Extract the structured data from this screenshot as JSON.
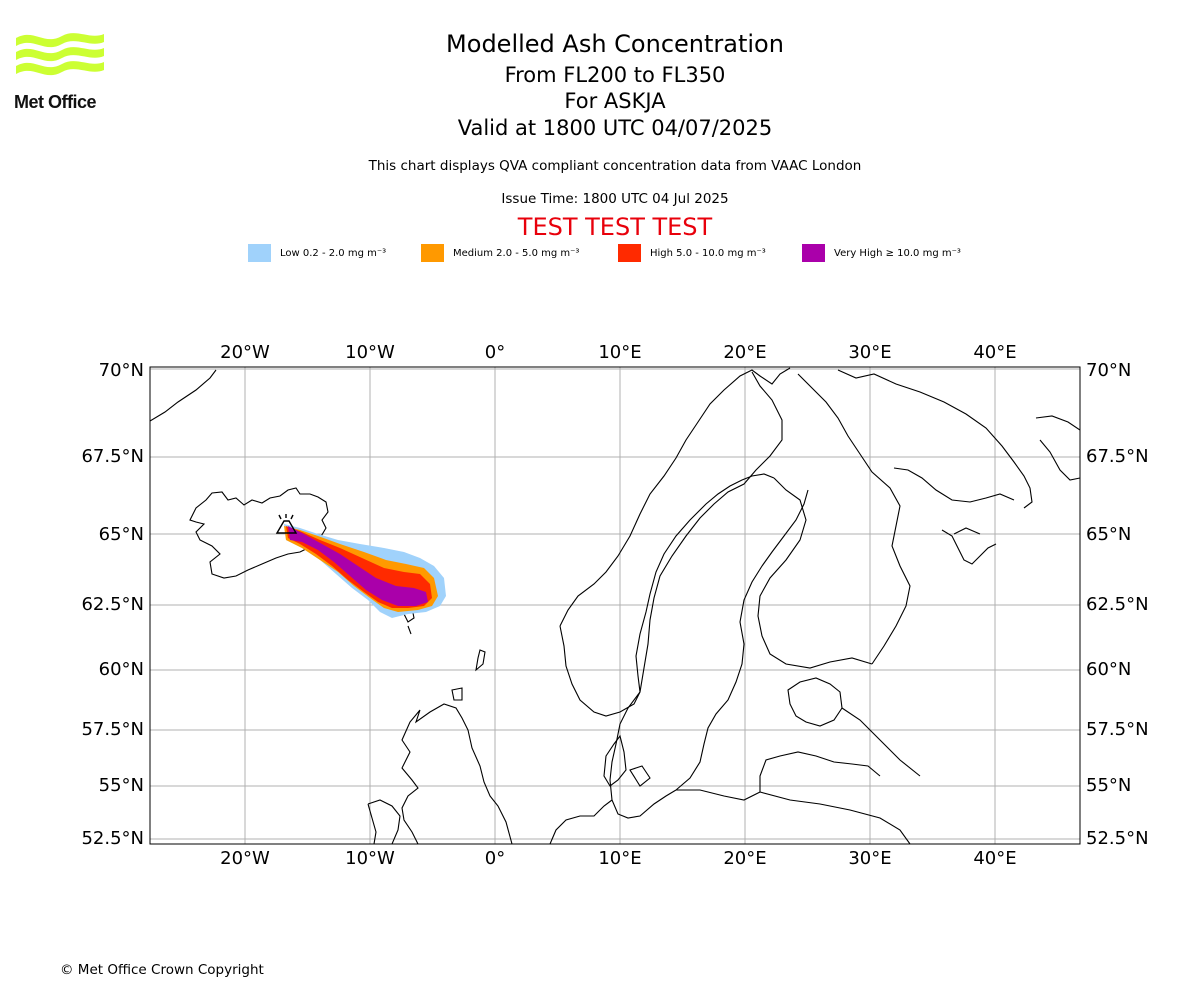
{
  "logo": {
    "text": "Met Office",
    "brand_color": "#ccff33"
  },
  "header": {
    "title": "Modelled Ash Concentration",
    "levels": "From FL200 to FL350",
    "volcano": "For ASKJA",
    "valid": "Valid at 1800 UTC 04/07/2025",
    "description": "This chart displays QVA compliant concentration data from VAAC London",
    "issue_time": "Issue Time: 1800 UTC 04 Jul 2025",
    "test_banner": "TEST TEST TEST",
    "test_color": "#e8000b"
  },
  "legend": [
    {
      "label": "Low 0.2 - 2.0 mg m⁻³",
      "color": "#a0d2fb"
    },
    {
      "label": "Medium 2.0 - 5.0 mg m⁻³",
      "color": "#ff9900"
    },
    {
      "label": "High 5.0 - 10.0 mg m⁻³",
      "color": "#ff2a00"
    },
    {
      "label": "Very High  ≥  10.0 mg m⁻³",
      "color": "#aa00aa"
    }
  ],
  "map": {
    "lon_ticks": [
      "20°W",
      "10°W",
      "0°",
      "10°E",
      "20°E",
      "30°E",
      "40°E"
    ],
    "lat_ticks": [
      "70°N",
      "67.5°N",
      "65°N",
      "62.5°N",
      "60°N",
      "57.5°N",
      "55°N",
      "52.5°N"
    ],
    "extent": {
      "lon": [
        -27.5,
        47
      ],
      "lat": [
        52.3,
        70
      ]
    },
    "volcano_name": "ASKJA",
    "volcano_symbol": "volcano-icon"
  },
  "footer": {
    "copyright": "© Met Office Crown Copyright"
  }
}
